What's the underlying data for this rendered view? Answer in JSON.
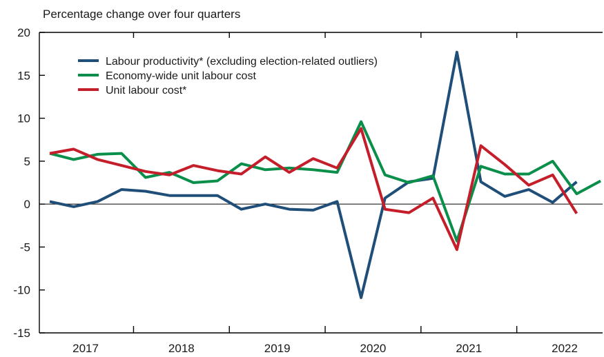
{
  "chart_data": {
    "type": "line",
    "title": "Percentage change over four quarters",
    "xlabel": "",
    "ylabel": "",
    "ylim": [
      -15,
      20
    ],
    "yticks": [
      -15,
      -10,
      -5,
      0,
      5,
      10,
      15,
      20
    ],
    "ytick_labels": [
      "-15",
      "-10",
      "-5",
      "0",
      "5",
      "10",
      "15",
      "20"
    ],
    "year_labels": [
      "2017",
      "2018",
      "2019",
      "2020",
      "2021",
      "2022"
    ],
    "x_unit": "quarter",
    "x": [
      "2017Q1",
      "2017Q2",
      "2017Q3",
      "2017Q4",
      "2018Q1",
      "2018Q2",
      "2018Q3",
      "2018Q4",
      "2019Q1",
      "2019Q2",
      "2019Q3",
      "2019Q4",
      "2020Q1",
      "2020Q2",
      "2020Q3",
      "2020Q4",
      "2021Q1",
      "2021Q2",
      "2021Q3",
      "2021Q4",
      "2022Q1",
      "2022Q2",
      "2022Q3",
      "2022Q4"
    ],
    "zero_line": true,
    "legend_position": "top-left",
    "series": [
      {
        "name": "Labour productivity* (excluding election-related outliers)",
        "color": "#1f4e79",
        "values": [
          0.3,
          -0.3,
          0.3,
          1.7,
          1.5,
          1.0,
          1.0,
          1.0,
          -0.6,
          0.0,
          -0.6,
          -0.7,
          0.3,
          -10.9,
          0.7,
          2.6,
          3.0,
          17.7,
          2.6,
          0.9,
          1.7,
          0.2,
          2.6,
          null
        ]
      },
      {
        "name": "Economy-wide unit labour cost",
        "color": "#0a8f4a",
        "values": [
          5.9,
          5.2,
          5.8,
          5.9,
          3.1,
          3.7,
          2.5,
          2.7,
          4.7,
          4.0,
          4.2,
          4.0,
          3.7,
          9.6,
          3.4,
          2.5,
          3.3,
          -4.3,
          4.4,
          3.5,
          3.5,
          5.0,
          1.2,
          2.7
        ]
      },
      {
        "name": "Unit labour cost*",
        "color": "#c41e2a",
        "values": [
          5.9,
          6.4,
          5.2,
          4.5,
          3.8,
          3.4,
          4.5,
          3.9,
          3.5,
          5.5,
          3.7,
          5.3,
          4.2,
          8.8,
          -0.6,
          -1.0,
          0.7,
          -5.3,
          6.8,
          4.6,
          2.2,
          3.4,
          -1.1,
          null
        ]
      }
    ]
  }
}
